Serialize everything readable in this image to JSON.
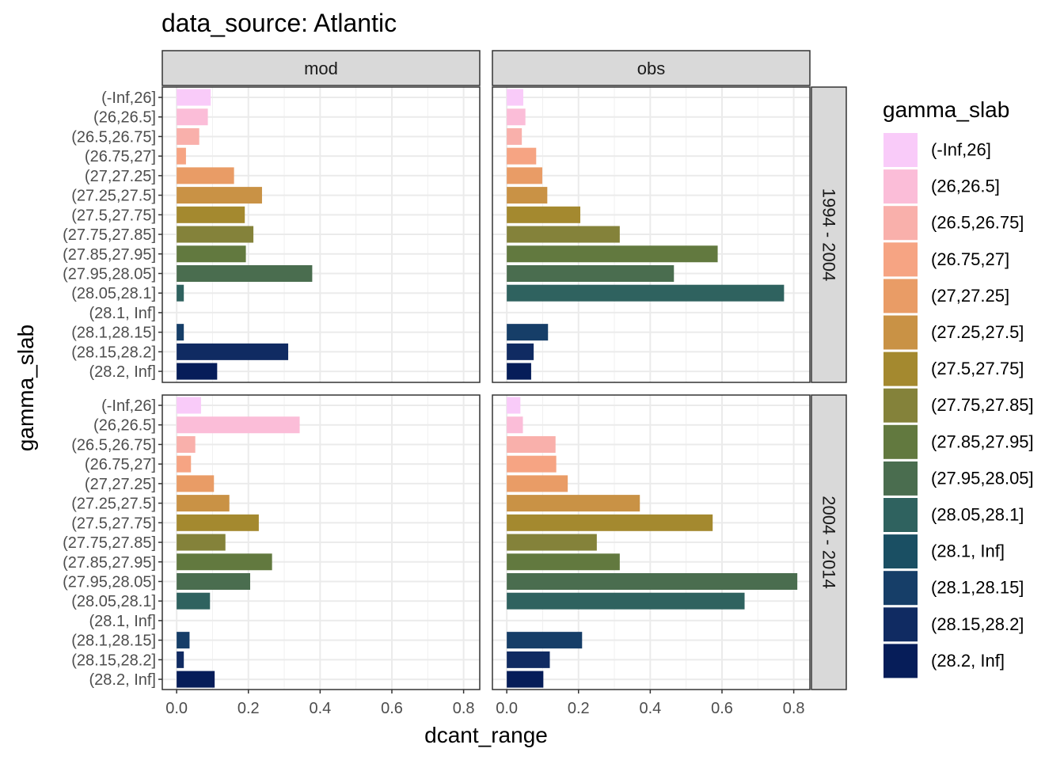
{
  "chart_data": {
    "type": "bar",
    "orientation": "horizontal",
    "title": "data_source: Atlantic",
    "xlabel": "dcant_range",
    "ylabel": "gamma_slab",
    "xlim": [
      -0.04,
      0.845
    ],
    "x_ticks": [
      0.0,
      0.2,
      0.4,
      0.6,
      0.8
    ],
    "x_tick_labels": [
      "0.0",
      "0.2",
      "0.4",
      "0.6",
      "0.8"
    ],
    "grid": true,
    "legend_position": "right",
    "legend_title": "gamma_slab",
    "facet_columns": [
      "mod",
      "obs"
    ],
    "facet_rows": [
      "1994 - 2004",
      "2004 - 2014"
    ],
    "categories": [
      "(-Inf,26]",
      "(26,26.5]",
      "(26.5,26.75]",
      "(26.75,27]",
      "(27,27.25]",
      "(27.25,27.5]",
      "(27.5,27.75]",
      "(27.75,27.85]",
      "(27.85,27.95]",
      "(27.95,28.05]",
      "(28.05,28.1]",
      "(28.1, Inf]",
      "(28.1,28.15]",
      "(28.15,28.2]",
      "(28.2, Inf]"
    ],
    "colors": [
      "#F9CBF9",
      "#FBBDD8",
      "#F9B0AB",
      "#F6A483",
      "#E99C66",
      "#C99245",
      "#A4892F",
      "#84823A",
      "#62793F",
      "#4A6D4F",
      "#2F625F",
      "#1A4F63",
      "#163E68",
      "#102B62",
      "#061D59"
    ],
    "panels": [
      {
        "column": "mod",
        "row": "1994 - 2004",
        "values": [
          0.095,
          0.087,
          0.063,
          0.026,
          0.16,
          0.238,
          0.19,
          0.214,
          0.193,
          0.378,
          0.02,
          null,
          0.02,
          0.311,
          0.113
        ]
      },
      {
        "column": "obs",
        "row": "1994 - 2004",
        "values": [
          0.046,
          0.052,
          0.042,
          0.082,
          0.099,
          0.113,
          0.205,
          0.315,
          0.588,
          0.466,
          0.773,
          null,
          0.115,
          0.075,
          0.068
        ]
      },
      {
        "column": "mod",
        "row": "2004 - 2014",
        "values": [
          0.068,
          0.343,
          0.052,
          0.04,
          0.104,
          0.147,
          0.229,
          0.136,
          0.266,
          0.205,
          0.093,
          null,
          0.036,
          0.02,
          0.106
        ]
      },
      {
        "column": "obs",
        "row": "2004 - 2014",
        "values": [
          0.038,
          0.045,
          0.136,
          0.138,
          0.17,
          0.371,
          0.574,
          0.251,
          0.315,
          0.81,
          0.663,
          null,
          0.21,
          0.12,
          0.102
        ]
      }
    ]
  }
}
